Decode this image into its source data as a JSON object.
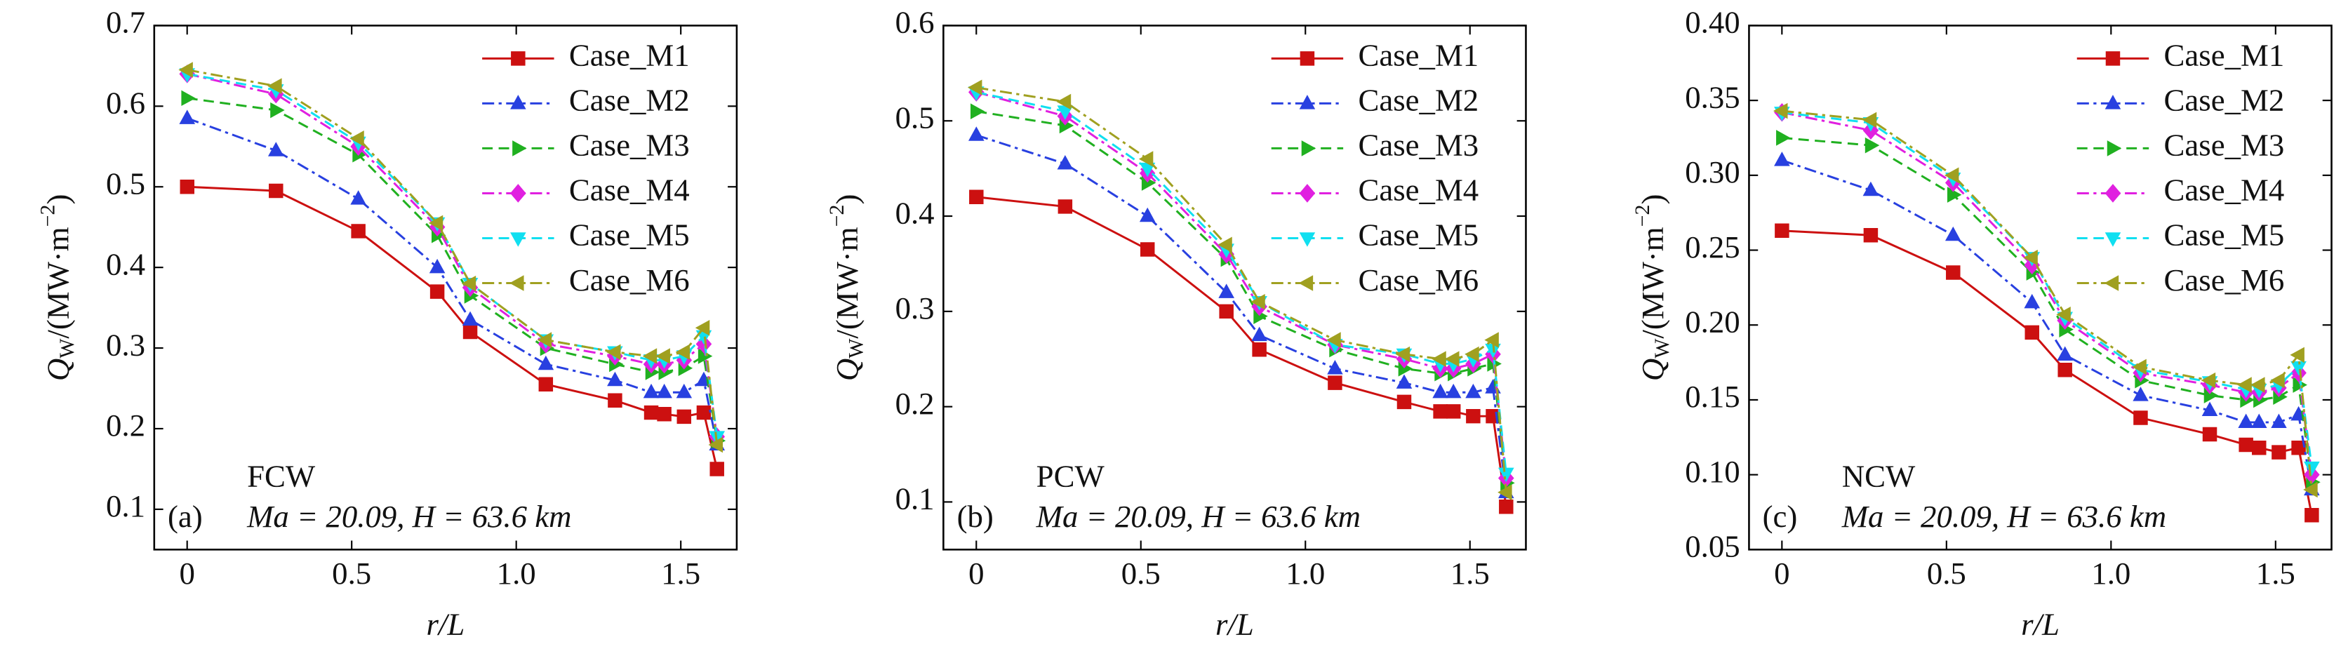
{
  "chart_data": [
    {
      "type": "line",
      "xlabel": "r/L",
      "ylabel": {
        "main": "Q",
        "sub": "W",
        "rest": "/(MW·m",
        "sup": "−2",
        "end": ")"
      },
      "panel_label": "(a)",
      "case_label": "FCW",
      "annotation": "Ma = 20.09, H = 63.6 km",
      "xlim": [
        -0.1,
        1.67
      ],
      "ylim": [
        0.05,
        0.7
      ],
      "xticks": [
        0,
        0.5,
        {
          "value": 1,
          "label": "1.0"
        },
        1.5
      ],
      "yticks": [
        0.1,
        0.2,
        0.3,
        0.4,
        0.5,
        0.6,
        0.7
      ],
      "legend": "upper right",
      "x": [
        0,
        0.27,
        0.52,
        0.76,
        0.86,
        1.09,
        1.3,
        1.41,
        1.45,
        1.51,
        1.57,
        1.61
      ],
      "series": [
        {
          "name": "Case_M1",
          "color": "#cc1010",
          "marker": "square",
          "dash": "solid",
          "values": [
            0.5,
            0.495,
            0.445,
            0.37,
            0.32,
            0.255,
            0.235,
            0.22,
            0.218,
            0.215,
            0.22,
            0.15
          ]
        },
        {
          "name": "Case_M2",
          "color": "#2840e0",
          "marker": "triangle-up",
          "dash": "dashdot",
          "values": [
            0.585,
            0.545,
            0.485,
            0.4,
            0.335,
            0.28,
            0.26,
            0.245,
            0.245,
            0.245,
            0.26,
            0.18
          ]
        },
        {
          "name": "Case_M3",
          "color": "#20b020",
          "marker": "triangle-right",
          "dash": "dashed",
          "values": [
            0.61,
            0.595,
            0.54,
            0.44,
            0.365,
            0.3,
            0.28,
            0.27,
            0.27,
            0.275,
            0.29,
            0.185
          ]
        },
        {
          "name": "Case_M4",
          "color": "#e020e0",
          "marker": "diamond",
          "dash": "dashdot",
          "values": [
            0.64,
            0.615,
            0.55,
            0.45,
            0.375,
            0.305,
            0.29,
            0.28,
            0.28,
            0.285,
            0.305,
            0.19
          ]
        },
        {
          "name": "Case_M5",
          "color": "#10dff0",
          "marker": "triangle-down",
          "dash": "dashed",
          "values": [
            0.64,
            0.62,
            0.555,
            0.455,
            0.38,
            0.31,
            0.295,
            0.285,
            0.285,
            0.29,
            0.315,
            0.19
          ]
        },
        {
          "name": "Case_M6",
          "color": "#a0a020",
          "marker": "triangle-left",
          "dash": "dashdot",
          "values": [
            0.645,
            0.625,
            0.56,
            0.455,
            0.38,
            0.31,
            0.295,
            0.29,
            0.29,
            0.295,
            0.325,
            0.18
          ]
        }
      ]
    },
    {
      "type": "line",
      "xlabel": "r/L",
      "ylabel": {
        "main": "Q",
        "sub": "W",
        "rest": "/(MW·m",
        "sup": "−2",
        "end": ")"
      },
      "panel_label": "(b)",
      "case_label": "PCW",
      "annotation": "Ma = 20.09, H = 63.6 km",
      "xlim": [
        -0.1,
        1.67
      ],
      "ylim": [
        0.05,
        0.6
      ],
      "xticks": [
        0,
        0.5,
        {
          "value": 1,
          "label": "1.0"
        },
        1.5
      ],
      "yticks": [
        0.1,
        0.2,
        0.3,
        0.4,
        0.5,
        0.6
      ],
      "legend": "upper right",
      "x": [
        0,
        0.27,
        0.52,
        0.76,
        0.86,
        1.09,
        1.3,
        1.41,
        1.45,
        1.51,
        1.57,
        1.61
      ],
      "series": [
        {
          "name": "Case_M1",
          "color": "#cc1010",
          "marker": "square",
          "dash": "solid",
          "values": [
            0.42,
            0.41,
            0.365,
            0.3,
            0.26,
            0.225,
            0.205,
            0.195,
            0.195,
            0.19,
            0.19,
            0.095
          ]
        },
        {
          "name": "Case_M2",
          "color": "#2840e0",
          "marker": "triangle-up",
          "dash": "dashdot",
          "values": [
            0.485,
            0.455,
            0.4,
            0.32,
            0.275,
            0.24,
            0.225,
            0.215,
            0.215,
            0.215,
            0.22,
            0.11
          ]
        },
        {
          "name": "Case_M3",
          "color": "#20b020",
          "marker": "triangle-right",
          "dash": "dashed",
          "values": [
            0.51,
            0.495,
            0.435,
            0.355,
            0.295,
            0.26,
            0.24,
            0.235,
            0.235,
            0.24,
            0.245,
            0.12
          ]
        },
        {
          "name": "Case_M4",
          "color": "#e020e0",
          "marker": "diamond",
          "dash": "dashdot",
          "values": [
            0.53,
            0.505,
            0.445,
            0.36,
            0.305,
            0.265,
            0.25,
            0.24,
            0.24,
            0.245,
            0.255,
            0.125
          ]
        },
        {
          "name": "Case_M5",
          "color": "#10dff0",
          "marker": "triangle-down",
          "dash": "dashed",
          "values": [
            0.53,
            0.51,
            0.45,
            0.365,
            0.31,
            0.265,
            0.255,
            0.245,
            0.245,
            0.25,
            0.26,
            0.13
          ]
        },
        {
          "name": "Case_M6",
          "color": "#a0a020",
          "marker": "triangle-left",
          "dash": "dashdot",
          "values": [
            0.535,
            0.52,
            0.46,
            0.37,
            0.31,
            0.27,
            0.255,
            0.25,
            0.25,
            0.255,
            0.27,
            0.11
          ]
        }
      ]
    },
    {
      "type": "line",
      "xlabel": "r/L",
      "ylabel": {
        "main": "Q",
        "sub": "W",
        "rest": "/(MW·m",
        "sup": "−2",
        "end": ")"
      },
      "panel_label": "(c)",
      "case_label": "NCW",
      "annotation": "Ma = 20.09, H = 63.6 km",
      "xlim": [
        -0.1,
        1.67
      ],
      "ylim": [
        0.05,
        0.4
      ],
      "xticks": [
        0,
        0.5,
        {
          "value": 1,
          "label": "1.0"
        },
        1.5
      ],
      "yticks": [
        0.05,
        {
          "value": 0.1,
          "label": "0.10"
        },
        0.15,
        {
          "value": 0.2,
          "label": "0.20"
        },
        0.25,
        {
          "value": 0.3,
          "label": "0.30"
        },
        0.35,
        {
          "value": 0.4,
          "label": "0.40"
        }
      ],
      "legend": "upper right",
      "x": [
        0,
        0.27,
        0.52,
        0.76,
        0.86,
        1.09,
        1.3,
        1.41,
        1.45,
        1.51,
        1.57,
        1.61
      ],
      "series": [
        {
          "name": "Case_M1",
          "color": "#cc1010",
          "marker": "square",
          "dash": "solid",
          "values": [
            0.263,
            0.26,
            0.235,
            0.195,
            0.17,
            0.138,
            0.127,
            0.12,
            0.118,
            0.115,
            0.118,
            0.073
          ]
        },
        {
          "name": "Case_M2",
          "color": "#2840e0",
          "marker": "triangle-up",
          "dash": "dashdot",
          "values": [
            0.31,
            0.29,
            0.26,
            0.215,
            0.18,
            0.153,
            0.143,
            0.135,
            0.135,
            0.135,
            0.14,
            0.09
          ]
        },
        {
          "name": "Case_M3",
          "color": "#20b020",
          "marker": "triangle-right",
          "dash": "dashed",
          "values": [
            0.325,
            0.32,
            0.287,
            0.235,
            0.197,
            0.163,
            0.153,
            0.15,
            0.15,
            0.152,
            0.16,
            0.095
          ]
        },
        {
          "name": "Case_M4",
          "color": "#e020e0",
          "marker": "diamond",
          "dash": "dashdot",
          "values": [
            0.342,
            0.33,
            0.295,
            0.24,
            0.203,
            0.168,
            0.16,
            0.155,
            0.155,
            0.158,
            0.168,
            0.1
          ]
        },
        {
          "name": "Case_M5",
          "color": "#10dff0",
          "marker": "triangle-down",
          "dash": "dashed",
          "values": [
            0.342,
            0.335,
            0.298,
            0.245,
            0.205,
            0.17,
            0.162,
            0.157,
            0.157,
            0.16,
            0.172,
            0.105
          ]
        },
        {
          "name": "Case_M6",
          "color": "#a0a020",
          "marker": "triangle-left",
          "dash": "dashdot",
          "values": [
            0.343,
            0.337,
            0.3,
            0.245,
            0.207,
            0.172,
            0.163,
            0.16,
            0.16,
            0.163,
            0.18,
            0.09
          ]
        }
      ]
    }
  ]
}
